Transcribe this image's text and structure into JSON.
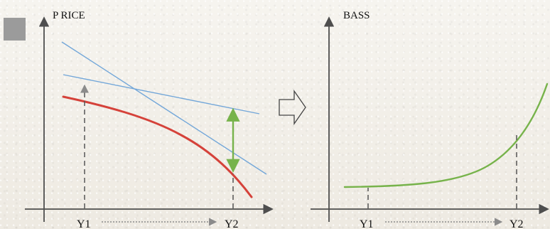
{
  "colors": {
    "background": "#f3f1ec",
    "axis": "#4e4e4e",
    "blue_line": "#73a7d9",
    "red_curve": "#d5423a",
    "green": "#77b34b",
    "legend_square": "#9b9b9b"
  },
  "left_panel": {
    "y_axis_label": "P RICE",
    "x_tick_1": "Y1",
    "x_tick_2": "Y2"
  },
  "right_panel": {
    "y_axis_label": "BASS",
    "x_tick_1": "Y1",
    "x_tick_2": "Y2"
  },
  "icons": {
    "legend_marker": "square-marker",
    "transition": "right-arrow-outline"
  }
}
